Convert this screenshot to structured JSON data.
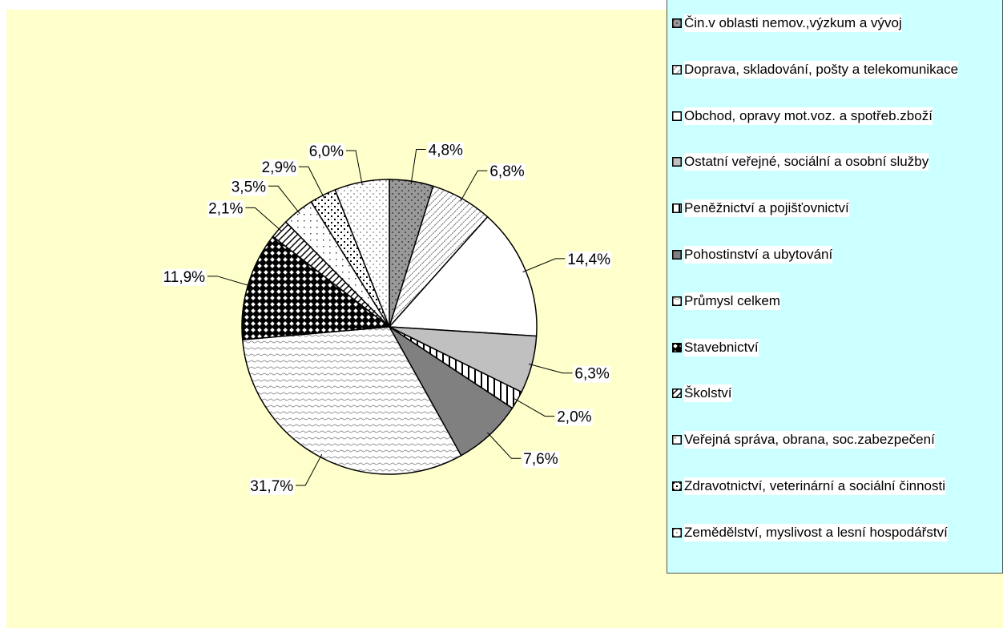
{
  "chart_data": {
    "type": "pie",
    "categories": [
      "Čin.v oblasti nemov.,výzkum a vývoj",
      "Doprava, skladování, pošty a telekomunikace",
      "Obchod, opravy mot.voz. a spotřeb.zboží",
      "Ostatní veřejné, sociální a osobní služby",
      "Peněžnictví a pojišťovnictví",
      "Pohostinství a ubytování",
      "Průmysl celkem",
      "Stavebnictví",
      "Školství",
      "Veřejná správa, obrana, soc.zabezpečení",
      "Zdravotnictví, veterinární a sociální činnosti",
      "Zemědělství, myslivost a lesní hospodářství"
    ],
    "values": [
      4.8,
      6.8,
      14.4,
      6.3,
      2.0,
      7.6,
      31.7,
      11.9,
      2.1,
      3.5,
      2.9,
      6.0
    ],
    "value_labels": [
      "4,8%",
      "6,8%",
      "14,4%",
      "6,3%",
      "2,0%",
      "7,6%",
      "31,7%",
      "11,9%",
      "2,1%",
      "3,5%",
      "2,9%",
      "6,0%"
    ],
    "colors": [
      "#999999",
      "#ffffff",
      "#ffffff",
      "#c0c0c0",
      "#ffffff",
      "#808080",
      "#ffffff",
      "#ffffff",
      "#ffffff",
      "#ffffff",
      "#ffffff",
      "#ffffff"
    ],
    "legend": "right"
  }
}
